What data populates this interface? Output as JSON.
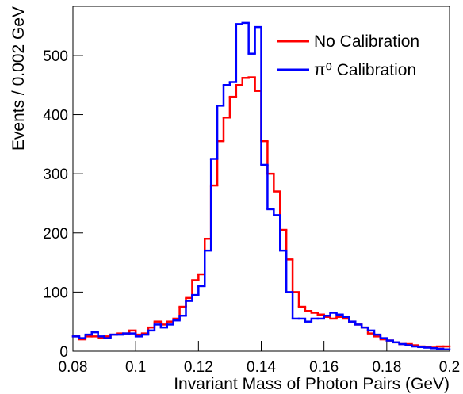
{
  "chart_data": {
    "type": "histogram",
    "xlabel": "Invariant Mass of Photon Pairs (GeV)",
    "ylabel": "Events / 0.002 GeV",
    "bins": [
      0.08,
      0.082,
      0.084,
      0.086,
      0.088,
      0.09,
      0.092,
      0.094,
      0.096,
      0.098,
      0.1,
      0.102,
      0.104,
      0.106,
      0.108,
      0.11,
      0.112,
      0.114,
      0.116,
      0.118,
      0.12,
      0.122,
      0.124,
      0.126,
      0.128,
      0.13,
      0.132,
      0.134,
      0.136,
      0.138,
      0.14,
      0.142,
      0.144,
      0.146,
      0.148,
      0.15,
      0.152,
      0.154,
      0.156,
      0.158,
      0.16,
      0.162,
      0.164,
      0.166,
      0.168,
      0.17,
      0.172,
      0.174,
      0.176,
      0.178,
      0.18,
      0.182,
      0.184,
      0.186,
      0.188,
      0.19,
      0.192,
      0.194,
      0.196,
      0.198,
      0.2
    ],
    "series": [
      {
        "name": "No Calibration",
        "color": "#ff0000",
        "values": [
          25,
          20,
          25,
          25,
          22,
          25,
          28,
          30,
          30,
          35,
          28,
          30,
          40,
          50,
          45,
          50,
          55,
          75,
          90,
          120,
          130,
          190,
          280,
          355,
          395,
          430,
          450,
          462,
          463,
          440,
          355,
          300,
          270,
          205,
          155,
          100,
          75,
          68,
          65,
          62,
          58,
          55,
          58,
          55,
          50,
          45,
          40,
          30,
          25,
          20,
          18,
          15,
          12,
          12,
          10,
          8,
          7,
          6,
          8,
          8
        ]
      },
      {
        "name": "π⁰ Calibration",
        "color": "#0000ff",
        "values": [
          25,
          22,
          28,
          32,
          25,
          22,
          28,
          28,
          30,
          30,
          25,
          28,
          35,
          45,
          40,
          45,
          52,
          60,
          85,
          95,
          110,
          170,
          325,
          415,
          450,
          455,
          553,
          555,
          503,
          548,
          315,
          240,
          230,
          170,
          100,
          55,
          55,
          50,
          55,
          55,
          60,
          65,
          62,
          58,
          50,
          45,
          40,
          35,
          28,
          22,
          18,
          15,
          12,
          10,
          8,
          7,
          6,
          5,
          4,
          3
        ]
      }
    ],
    "xlim": [
      0.08,
      0.2
    ],
    "xticks": [
      0.08,
      0.1,
      0.12,
      0.14,
      0.16,
      0.18,
      0.2
    ],
    "ylim": [
      0,
      583
    ],
    "yticks": [
      0,
      100,
      200,
      300,
      400,
      500
    ],
    "legend": "upper-right"
  }
}
